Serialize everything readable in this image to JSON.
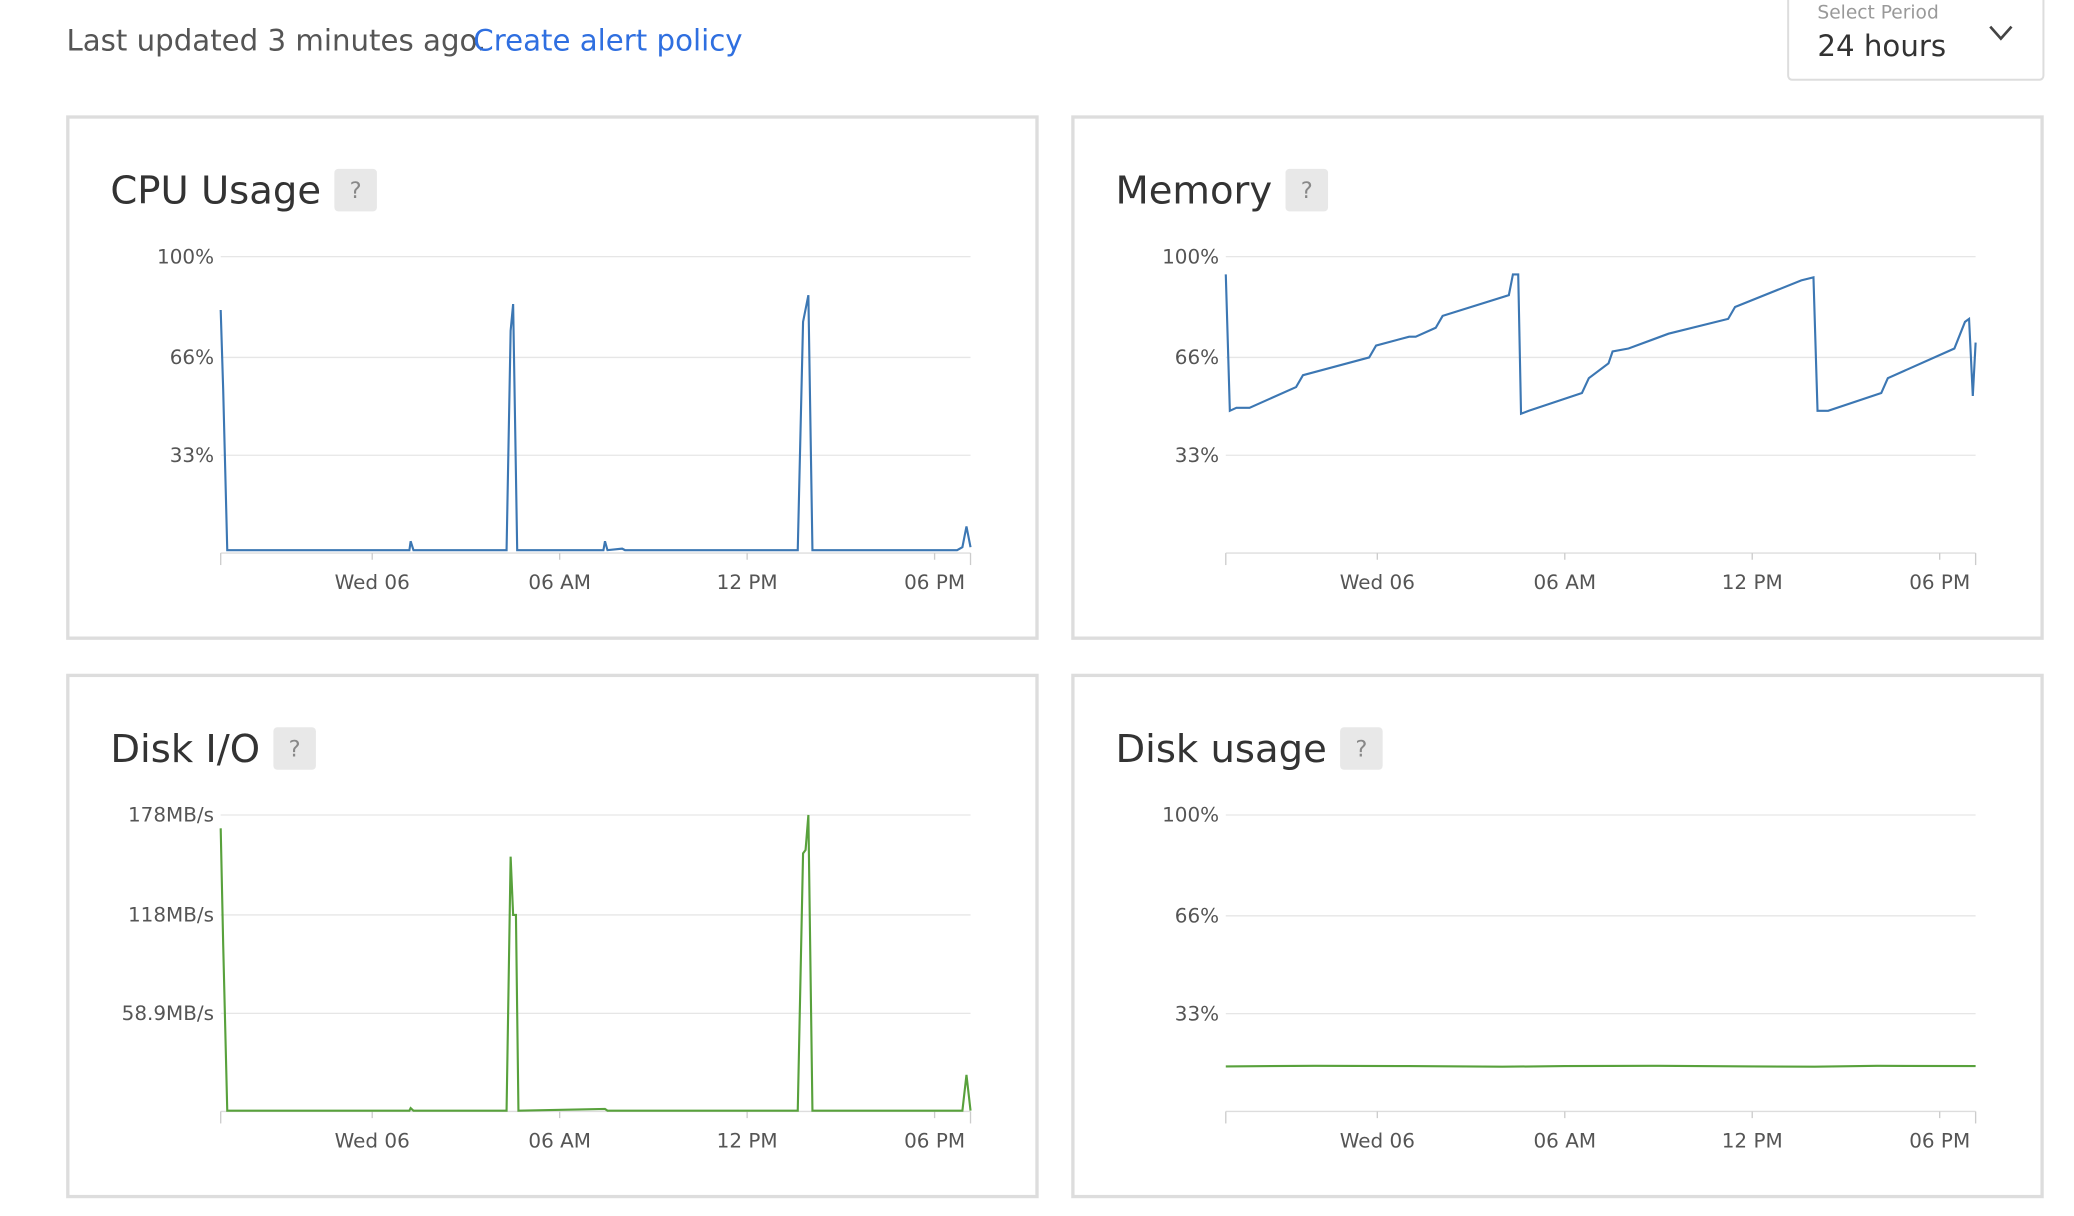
{
  "header": {
    "status": "Last updated 3 minutes ago.",
    "link": "Create alert policy",
    "period_label": "Select Period",
    "period_value": "24 hours"
  },
  "help": "?",
  "chart_data": [
    {
      "type": "line",
      "title": "CPU Usage",
      "color": "#3c77b3",
      "grid": true,
      "xlim": [
        -4.85,
        19.15
      ],
      "xticks": [
        {
          "value": 0,
          "label": "Wed 06"
        },
        {
          "value": 6,
          "label": "06 AM"
        },
        {
          "value": 12,
          "label": "12 PM"
        },
        {
          "value": 18,
          "label": "06 PM"
        }
      ],
      "ylim": [
        0,
        100
      ],
      "yticks": [
        {
          "value": 33,
          "label": "33%"
        },
        {
          "value": 66,
          "label": "66%"
        },
        {
          "value": 100,
          "label": "100%"
        }
      ],
      "x": [
        -4.85,
        -4.77,
        -4.64,
        1.19,
        1.23,
        1.32,
        4.3,
        4.43,
        4.51,
        4.64,
        7.4,
        7.45,
        7.53,
        8.0,
        8.09,
        13.62,
        13.79,
        13.96,
        14.09,
        18.72,
        18.89,
        19.02,
        19.15
      ],
      "values": [
        82,
        55,
        1,
        1,
        4,
        1,
        1,
        75,
        84,
        1,
        1,
        4,
        1,
        1.5,
        1,
        1,
        78,
        87,
        1,
        1,
        2,
        9,
        2
      ]
    },
    {
      "type": "line",
      "title": "Memory",
      "color": "#3c77b3",
      "grid": true,
      "xlim": [
        -4.85,
        19.15
      ],
      "xticks": [
        {
          "value": 0,
          "label": "Wed 06"
        },
        {
          "value": 6,
          "label": "06 AM"
        },
        {
          "value": 12,
          "label": "12 PM"
        },
        {
          "value": 18,
          "label": "06 PM"
        }
      ],
      "ylim": [
        0,
        100
      ],
      "yticks": [
        {
          "value": 33,
          "label": "33%"
        },
        {
          "value": 66,
          "label": "66%"
        },
        {
          "value": 100,
          "label": "100%"
        }
      ],
      "x": [
        -4.85,
        -4.72,
        -4.51,
        -4.09,
        -2.6,
        -2.38,
        -0.26,
        -0.04,
        1.02,
        1.23,
        1.87,
        2.09,
        4.21,
        4.34,
        4.51,
        4.6,
        4.85,
        6.55,
        6.77,
        7.4,
        7.53,
        8.04,
        9.32,
        11.23,
        11.45,
        13.57,
        13.96,
        14.09,
        14.43,
        16.13,
        16.34,
        18.47,
        18.81,
        18.94,
        19.06,
        19.15
      ],
      "values": [
        94,
        48,
        49,
        49,
        56,
        60,
        66,
        70,
        73,
        73,
        76,
        80,
        87,
        94,
        94,
        47,
        48,
        54,
        59,
        64,
        68,
        69,
        74,
        79,
        83,
        92,
        93,
        48,
        48,
        54,
        59,
        69,
        78,
        79,
        53,
        71
      ]
    },
    {
      "type": "line",
      "title": "Disk I/O",
      "color": "#58a13c",
      "grid": true,
      "xlim": [
        -4.85,
        19.15
      ],
      "xticks": [
        {
          "value": 0,
          "label": "Wed 06"
        },
        {
          "value": 6,
          "label": "06 AM"
        },
        {
          "value": 12,
          "label": "12 PM"
        },
        {
          "value": 18,
          "label": "06 PM"
        }
      ],
      "ylim": [
        0,
        178
      ],
      "yticks": [
        {
          "value": 58.9,
          "label": "58.9MB/s"
        },
        {
          "value": 118,
          "label": "118MB/s"
        },
        {
          "value": 178,
          "label": "178MB/s"
        }
      ],
      "x": [
        -4.85,
        -4.77,
        -4.64,
        1.19,
        1.23,
        1.32,
        4.3,
        4.43,
        4.51,
        4.6,
        4.68,
        7.45,
        7.53,
        13.62,
        13.79,
        13.87,
        13.96,
        14.09,
        18.89,
        19.02,
        19.15
      ],
      "values": [
        170,
        100,
        0.5,
        0.5,
        2,
        0.5,
        0.5,
        153,
        118,
        118,
        0.5,
        1.5,
        0.5,
        0.5,
        155,
        157,
        178,
        0.5,
        0.5,
        22,
        0.5
      ]
    },
    {
      "type": "line",
      "title": "Disk usage",
      "color": "#58a13c",
      "grid": true,
      "xlim": [
        -4.85,
        19.15
      ],
      "xticks": [
        {
          "value": 0,
          "label": "Wed 06"
        },
        {
          "value": 6,
          "label": "06 AM"
        },
        {
          "value": 12,
          "label": "12 PM"
        },
        {
          "value": 18,
          "label": "06 PM"
        }
      ],
      "ylim": [
        0,
        100
      ],
      "yticks": [
        {
          "value": 33,
          "label": "33%"
        },
        {
          "value": 66,
          "label": "66%"
        },
        {
          "value": 100,
          "label": "100%"
        }
      ],
      "x": [
        -4.85,
        -2,
        1,
        4,
        6,
        9,
        12,
        14,
        16,
        19.15
      ],
      "values": [
        15.2,
        15.4,
        15.3,
        15.1,
        15.3,
        15.4,
        15.2,
        15.1,
        15.4,
        15.3
      ]
    }
  ]
}
